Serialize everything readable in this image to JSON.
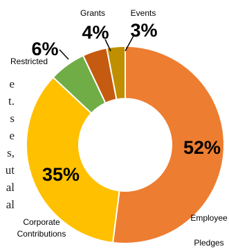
{
  "chart_data": {
    "type": "pie",
    "variant": "donut",
    "title": "",
    "slices": [
      {
        "label": "Employee Pledges",
        "value": 52,
        "percent_label": "52%",
        "color": "#ED7D31"
      },
      {
        "label": "Corporate Contributions",
        "value": 35,
        "percent_label": "35%",
        "color": "#FFC000"
      },
      {
        "label": "Restricted",
        "value": 6,
        "percent_label": "6%",
        "color": "#70AD47"
      },
      {
        "label": "Grants",
        "value": 4,
        "percent_label": "4%",
        "color": "#C55A11"
      },
      {
        "label": "Events",
        "value": 3,
        "percent_label": "3%",
        "color": "#BF8F00"
      }
    ]
  },
  "side_text": [
    "e",
    "t.",
    "s",
    "e",
    "s,",
    "ut",
    "al",
    "al"
  ]
}
